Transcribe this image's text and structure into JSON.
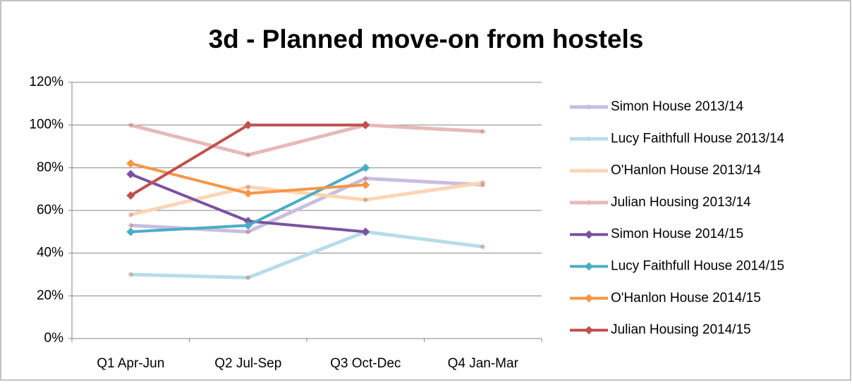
{
  "chart_data": {
    "type": "line",
    "title": "3d - Planned move-on from hostels",
    "categories": [
      "Q1 Apr-Jun",
      "Q2 Jul-Sep",
      "Q3 Oct-Dec",
      "Q4 Jan-Mar"
    ],
    "series": [
      {
        "name": "Simon House 2013/14",
        "color": "#c9bedf",
        "values": [
          53,
          50,
          75,
          72
        ]
      },
      {
        "name": "Lucy Faithfull House 2013/14",
        "color": "#b7dde8",
        "values": [
          30,
          28.5,
          50,
          43
        ]
      },
      {
        "name": "O'Hanlon House 2013/14",
        "color": "#fcd5b4",
        "values": [
          58,
          71,
          65,
          73
        ]
      },
      {
        "name": "Julian Housing 2013/14",
        "color": "#e6b9b8",
        "values": [
          100,
          86,
          100,
          97
        ]
      },
      {
        "name": "Simon House 2014/15",
        "color": "#7a529f",
        "values": [
          77,
          55,
          50,
          null
        ]
      },
      {
        "name": "Lucy Faithfull House 2014/15",
        "color": "#4bacc6",
        "values": [
          50,
          53,
          80,
          null
        ]
      },
      {
        "name": "O'Hanlon House 2014/15",
        "color": "#f79646",
        "values": [
          82,
          68,
          72,
          null
        ]
      },
      {
        "name": "Julian Housing 2014/15",
        "color": "#c0504d",
        "values": [
          67,
          100,
          100,
          null
        ]
      }
    ],
    "ylim": [
      0,
      120
    ],
    "yticks": [
      {
        "value": 0,
        "label": "0%"
      },
      {
        "value": 20,
        "label": "20%"
      },
      {
        "value": 40,
        "label": "40%"
      },
      {
        "value": 60,
        "label": "60%"
      },
      {
        "value": 80,
        "label": "80%"
      },
      {
        "value": 100,
        "label": "100%"
      },
      {
        "value": 120,
        "label": "120%"
      }
    ],
    "grid": true,
    "legend": "right"
  }
}
